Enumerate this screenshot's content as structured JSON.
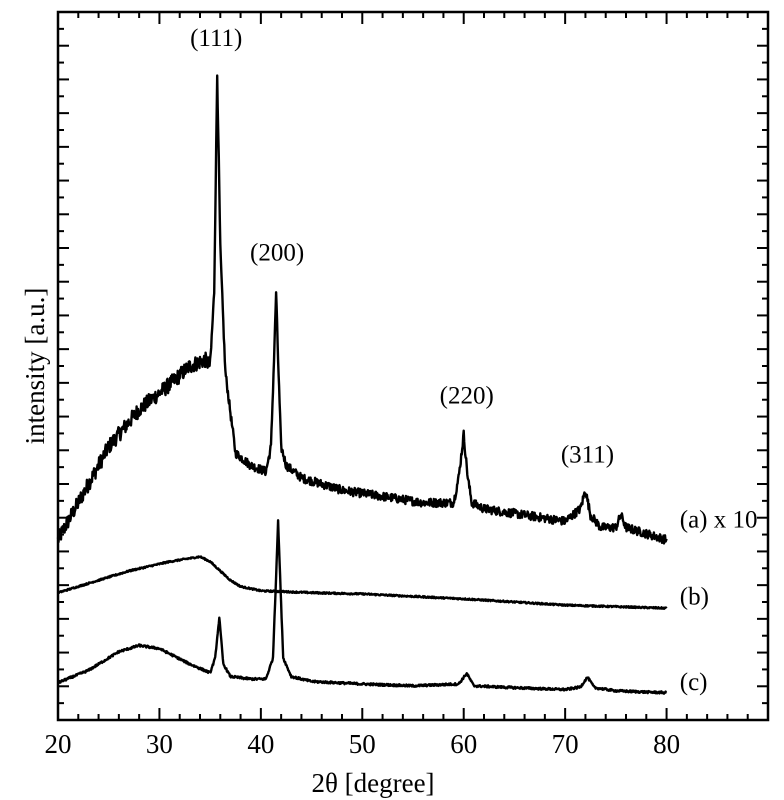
{
  "chart_data": {
    "type": "line",
    "title": "",
    "xlabel": "2θ [degree]",
    "ylabel": "intensity [a.u.]",
    "xlim": [
      20,
      90
    ],
    "x_ticks": [
      20,
      30,
      40,
      50,
      60,
      70,
      80
    ],
    "y_tick_labels": false,
    "grid": false,
    "series": [
      {
        "name": "(a) x 10",
        "x": [
          20,
          22,
          25,
          28,
          31,
          33,
          34.5,
          35,
          35.4,
          35.7,
          36,
          36.5,
          37.5,
          39,
          40.5,
          41,
          41.3,
          41.5,
          41.7,
          42,
          42.5,
          44,
          48,
          52,
          56,
          59,
          59.5,
          60,
          60.4,
          60.8,
          62,
          66,
          70,
          71.5,
          72,
          72.5,
          73.5,
          75,
          75.5,
          76,
          78,
          80
        ],
        "y": [
          25,
          31,
          40,
          46,
          50,
          53,
          54,
          53,
          65,
          100,
          72,
          52,
          39,
          37,
          36,
          40,
          54,
          65,
          54,
          40,
          37,
          35,
          33,
          32,
          31,
          31,
          35,
          42,
          35,
          31,
          30,
          29,
          28,
          30,
          33,
          29,
          27,
          27,
          29,
          27,
          26,
          25
        ]
      },
      {
        "name": "(b)",
        "x": [
          20,
          23,
          27,
          31,
          34,
          35,
          36,
          37,
          38,
          40,
          45,
          50,
          60,
          70,
          80
        ],
        "y": [
          16.5,
          18,
          20,
          21.5,
          22.3,
          21.5,
          20,
          18.5,
          17.5,
          16.8,
          16.5,
          16.3,
          15.5,
          14.5,
          14
        ]
      },
      {
        "name": "(c)",
        "x": [
          20,
          23,
          26,
          28,
          30,
          33,
          35,
          35.5,
          35.9,
          36.3,
          37,
          39,
          40.5,
          41.2,
          41.7,
          42.2,
          43,
          45,
          50,
          55,
          59.5,
          60.3,
          61,
          65,
          70,
          71.5,
          72.2,
          72.9,
          75,
          78,
          80
        ],
        "y": [
          2,
          4,
          7,
          8,
          7.5,
          5,
          3.6,
          6,
          12.5,
          5,
          3,
          2.6,
          2.6,
          6,
          28,
          6,
          3,
          2.2,
          1.8,
          1.5,
          1.8,
          3.5,
          1.5,
          1.2,
          0.9,
          1.3,
          2.9,
          1.2,
          0.7,
          0.5,
          0.4
        ]
      }
    ],
    "annotations": [
      {
        "text": "(111)",
        "x": 35.6,
        "y": 104.5
      },
      {
        "text": "(200)",
        "x": 41.6,
        "y": 70
      },
      {
        "text": "(220)",
        "x": 60.3,
        "y": 47
      },
      {
        "text": "(311)",
        "x": 72.2,
        "y": 37.5
      },
      {
        "text": "(a) x 10",
        "x": 81.3,
        "y": 27
      },
      {
        "text": "(b)",
        "x": 81.3,
        "y": 14.6
      },
      {
        "text": "(c)",
        "x": 81.3,
        "y": 0.8
      }
    ],
    "y_range": [
      -4,
      110
    ]
  }
}
